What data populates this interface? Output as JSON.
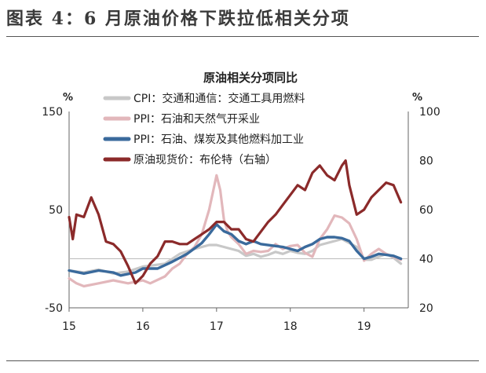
{
  "figure_title": "图表 4：6 月原油价格下跌拉低相关分项",
  "chart_data": {
    "type": "line",
    "title": "原油相关分项同比",
    "y_left_unit": "%",
    "y_right_unit": "%",
    "y_left_range": [
      -50,
      150
    ],
    "y_left_ticks": [
      "150",
      "50",
      "-50"
    ],
    "y_left_tick_values": [
      150,
      50,
      -50
    ],
    "y_right_range": [
      20,
      100
    ],
    "y_right_ticks": [
      "100",
      "80",
      "60",
      "40",
      "20"
    ],
    "y_right_tick_values": [
      100,
      80,
      60,
      40,
      20
    ],
    "x_range": [
      2015.0,
      2019.6
    ],
    "x_ticks": [
      "15",
      "16",
      "17",
      "18",
      "19"
    ],
    "x_tick_values": [
      2015,
      2016,
      2017,
      2018,
      2019
    ],
    "reference_line_left": 0,
    "grid": false,
    "legend_position": "top-left",
    "colors": {
      "cpi_transport": "#c8c8c8",
      "ppi_oil_gas": "#e2b7bb",
      "ppi_fuel_processing": "#3a6a9c",
      "brent": "#8b2a2a"
    },
    "series": [
      {
        "name": "CPI：交通和通信：交通工具用燃料",
        "key": "cpi_transport",
        "axis": "left",
        "x": [
          2015.0,
          2015.2,
          2015.4,
          2015.6,
          2015.8,
          2016.0,
          2016.1,
          2016.3,
          2016.5,
          2016.7,
          2016.9,
          2017.0,
          2017.1,
          2017.3,
          2017.4,
          2017.5,
          2017.6,
          2017.7,
          2017.8,
          2017.9,
          2018.0,
          2018.1,
          2018.2,
          2018.3,
          2018.4,
          2018.5,
          2018.6,
          2018.7,
          2018.8,
          2018.9,
          2019.0,
          2019.1,
          2019.2,
          2019.3,
          2019.4,
          2019.5
        ],
        "values": [
          -12,
          -14,
          -11,
          -15,
          -13,
          -8,
          -7,
          -5,
          5,
          10,
          14,
          14,
          12,
          8,
          3,
          5,
          2,
          4,
          7,
          5,
          8,
          6,
          5,
          8,
          14,
          16,
          18,
          20,
          16,
          12,
          -1,
          -1,
          2,
          5,
          1,
          -5
        ]
      },
      {
        "name": "PPI：石油和天然气开采业",
        "key": "ppi_oil_gas",
        "axis": "left",
        "x": [
          2015.0,
          2015.1,
          2015.2,
          2015.4,
          2015.6,
          2015.8,
          2016.0,
          2016.1,
          2016.3,
          2016.4,
          2016.5,
          2016.6,
          2016.7,
          2016.8,
          2016.9,
          2017.0,
          2017.05,
          2017.1,
          2017.15,
          2017.2,
          2017.3,
          2017.4,
          2017.5,
          2017.6,
          2017.7,
          2017.8,
          2017.9,
          2018.0,
          2018.1,
          2018.2,
          2018.3,
          2018.4,
          2018.5,
          2018.6,
          2018.7,
          2018.8,
          2018.9,
          2019.0,
          2019.1,
          2019.2,
          2019.3,
          2019.4,
          2019.5
        ],
        "values": [
          -20,
          -25,
          -28,
          -25,
          -22,
          -25,
          -22,
          -25,
          -18,
          -10,
          -5,
          5,
          12,
          25,
          50,
          85,
          70,
          40,
          28,
          22,
          15,
          5,
          8,
          7,
          8,
          15,
          10,
          13,
          14,
          6,
          2,
          20,
          30,
          44,
          42,
          36,
          20,
          -2,
          5,
          10,
          5,
          2,
          -1
        ]
      },
      {
        "name": "PPI：石油、煤炭及其他燃料加工业",
        "key": "ppi_fuel_processing",
        "axis": "left",
        "x": [
          2015.0,
          2015.2,
          2015.4,
          2015.6,
          2015.7,
          2015.9,
          2016.0,
          2016.2,
          2016.4,
          2016.6,
          2016.8,
          2016.9,
          2017.0,
          2017.1,
          2017.2,
          2017.3,
          2017.4,
          2017.5,
          2017.6,
          2017.8,
          2017.9,
          2018.0,
          2018.1,
          2018.2,
          2018.3,
          2018.4,
          2018.5,
          2018.6,
          2018.7,
          2018.8,
          2018.9,
          2019.0,
          2019.1,
          2019.2,
          2019.3,
          2019.4,
          2019.5
        ],
        "values": [
          -12,
          -15,
          -12,
          -14,
          -17,
          -14,
          -10,
          -10,
          -3,
          5,
          16,
          25,
          35,
          28,
          25,
          18,
          15,
          18,
          15,
          13,
          12,
          10,
          8,
          12,
          15,
          20,
          22,
          22,
          21,
          18,
          8,
          0,
          2,
          5,
          4,
          3,
          0
        ]
      },
      {
        "name": "原油现货价：布伦特（右轴）",
        "key": "brent",
        "axis": "right",
        "x": [
          2015.0,
          2015.05,
          2015.1,
          2015.2,
          2015.3,
          2015.4,
          2015.5,
          2015.6,
          2015.7,
          2015.8,
          2015.9,
          2016.0,
          2016.1,
          2016.2,
          2016.3,
          2016.4,
          2016.5,
          2016.6,
          2016.7,
          2016.8,
          2016.9,
          2017.0,
          2017.1,
          2017.2,
          2017.3,
          2017.4,
          2017.5,
          2017.6,
          2017.7,
          2017.8,
          2017.9,
          2018.0,
          2018.1,
          2018.2,
          2018.3,
          2018.4,
          2018.5,
          2018.6,
          2018.7,
          2018.75,
          2018.8,
          2018.9,
          2019.0,
          2019.1,
          2019.2,
          2019.3,
          2019.4,
          2019.5
        ],
        "values": [
          57,
          48,
          58,
          57,
          65,
          58,
          47,
          46,
          43,
          37,
          30,
          33,
          38,
          41,
          47,
          47,
          46,
          46,
          48,
          50,
          52,
          55,
          55,
          52,
          52,
          48,
          47,
          51,
          55,
          58,
          62,
          66,
          70,
          68,
          75,
          78,
          74,
          72,
          78,
          80,
          70,
          58,
          60,
          65,
          68,
          71,
          70,
          63
        ]
      }
    ]
  }
}
